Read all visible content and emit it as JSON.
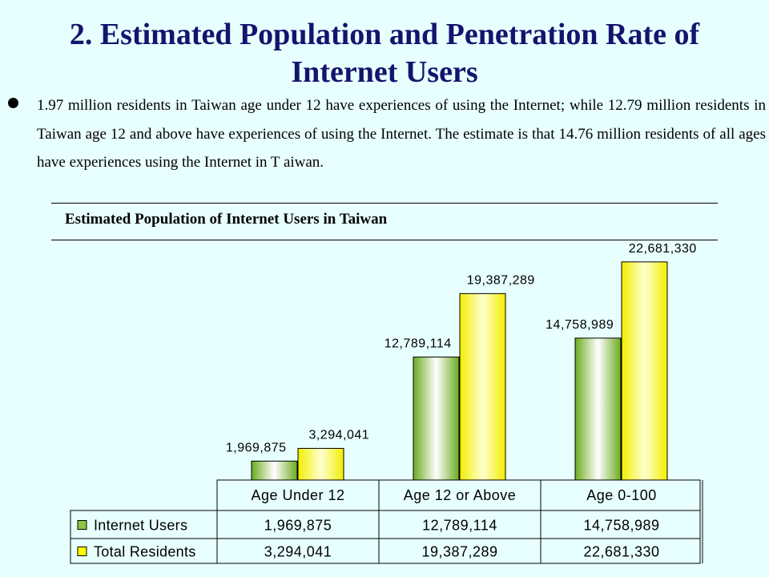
{
  "slide": {
    "title_line1": "2. Estimated Population and Penetration Rate of",
    "title_line2": "Internet Users",
    "paragraph": "1.97 million residents in Taiwan age under 12 have experiences of using the Internet; while 12.79 million residents in Taiwan age 12 and above have experiences of using  the Internet. The estimate is that 14.76 million residents of all ages have experiences using the Internet in T aiwan.",
    "chart_heading": "Estimated Population of Internet Users in Taiwan"
  },
  "colors": {
    "background": "#e8ffff",
    "title": "#14146e",
    "internet_users": "#8dc63f",
    "total_residents": "#ffff00"
  },
  "chart_data": {
    "type": "bar",
    "title": "Estimated Population of Internet Users in Taiwan",
    "categories": [
      "Age Under 12",
      "Age 12 or Above",
      "Age 0-100"
    ],
    "series": [
      {
        "name": "Internet Users",
        "values": [
          1969875,
          12789114,
          14758989
        ],
        "labels": [
          "1,969,875",
          "12,789,114",
          "14,758,989"
        ],
        "color": "#8dc63f"
      },
      {
        "name": "Total Residents",
        "values": [
          3294041,
          19387289,
          22681330
        ],
        "labels": [
          "3,294,041",
          "19,387,289",
          "22,681,330"
        ],
        "color": "#ffff00"
      }
    ],
    "ylim": [
      0,
      26000000
    ],
    "grid": false,
    "data_table": true,
    "legend": "data-table-left"
  }
}
